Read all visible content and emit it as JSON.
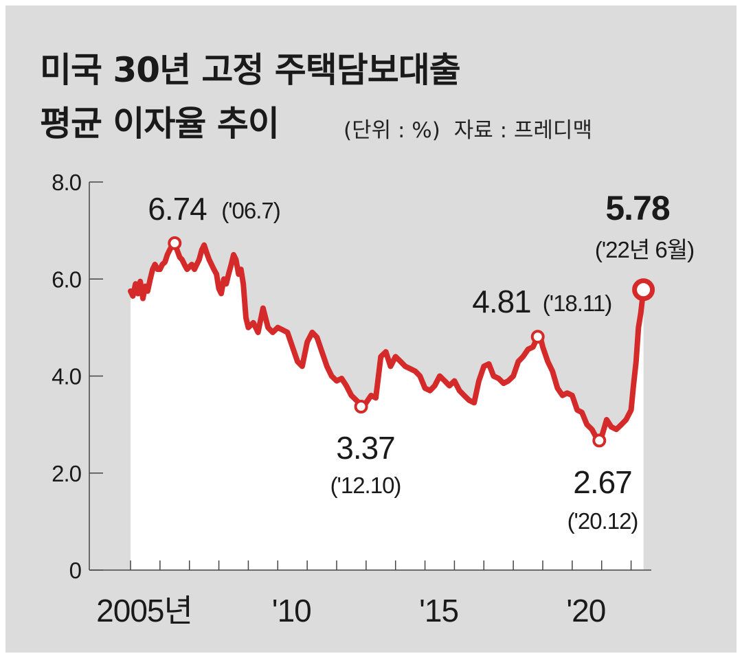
{
  "header": {
    "title_line1": "미국 30년 고정 주택담보대출",
    "title_line2": "평균 이자율 추이",
    "unit": "(단위 : %)",
    "source": "자료 : 프레디맥"
  },
  "colors": {
    "background": "#dcdcdc",
    "area_fill": "#ffffff",
    "line": "#d42a2a",
    "text": "#1a1a1a"
  },
  "chart_data": {
    "type": "area",
    "title": "미국 30년 고정 주택담보대출 평균 이자율 추이",
    "ylabel": "",
    "xlabel": "",
    "ylim": [
      0,
      8
    ],
    "xlim": [
      2005.0,
      2022.5
    ],
    "y_ticks": [
      "0",
      "2.0",
      "4.0",
      "6.0",
      "8.0"
    ],
    "x_tick_labels": [
      {
        "x": 2005,
        "label": "2005년"
      },
      {
        "x": 2010,
        "label": "'10"
      },
      {
        "x": 2015,
        "label": "'15"
      },
      {
        "x": 2020,
        "label": "'20"
      }
    ],
    "grid": false,
    "series": [
      {
        "x": [
          2005.0,
          2005.08,
          2005.17,
          2005.25,
          2005.33,
          2005.42,
          2005.5,
          2005.58,
          2005.67,
          2005.75,
          2005.83,
          2005.92,
          2006.0,
          2006.08,
          2006.17,
          2006.25,
          2006.33,
          2006.42,
          2006.5,
          2006.58,
          2006.67,
          2006.75,
          2006.83,
          2006.92,
          2007.0,
          2007.08,
          2007.17,
          2007.25,
          2007.33,
          2007.42,
          2007.5,
          2007.58,
          2007.67,
          2007.75,
          2007.83,
          2007.92,
          2008.0,
          2008.08,
          2008.17,
          2008.25,
          2008.33,
          2008.42,
          2008.5,
          2008.58,
          2008.67,
          2008.75,
          2008.83,
          2008.92,
          2009.0,
          2009.17,
          2009.33,
          2009.5,
          2009.67,
          2009.83,
          2010.0,
          2010.17,
          2010.33,
          2010.5,
          2010.67,
          2010.83,
          2011.0,
          2011.17,
          2011.33,
          2011.5,
          2011.67,
          2011.83,
          2012.0,
          2012.17,
          2012.33,
          2012.5,
          2012.67,
          2012.83,
          2012.92,
          2013.0,
          2013.17,
          2013.33,
          2013.5,
          2013.67,
          2013.83,
          2014.0,
          2014.17,
          2014.33,
          2014.5,
          2014.67,
          2014.83,
          2015.0,
          2015.17,
          2015.33,
          2015.5,
          2015.67,
          2015.83,
          2016.0,
          2016.17,
          2016.33,
          2016.5,
          2016.67,
          2016.83,
          2017.0,
          2017.17,
          2017.33,
          2017.5,
          2017.67,
          2017.83,
          2018.0,
          2018.17,
          2018.33,
          2018.5,
          2018.67,
          2018.83,
          2018.92,
          2019.0,
          2019.17,
          2019.33,
          2019.5,
          2019.67,
          2019.83,
          2020.0,
          2020.17,
          2020.33,
          2020.5,
          2020.67,
          2020.83,
          2020.92,
          2021.0,
          2021.17,
          2021.33,
          2021.5,
          2021.67,
          2021.83,
          2022.0,
          2022.08,
          2022.17,
          2022.25,
          2022.33,
          2022.42
        ],
        "y": [
          5.75,
          5.65,
          5.9,
          5.7,
          5.95,
          5.6,
          5.85,
          5.75,
          6.0,
          6.2,
          6.3,
          6.2,
          6.2,
          6.3,
          6.35,
          6.5,
          6.6,
          6.7,
          6.74,
          6.6,
          6.45,
          6.4,
          6.3,
          6.2,
          6.25,
          6.3,
          6.2,
          6.3,
          6.4,
          6.6,
          6.7,
          6.55,
          6.4,
          6.3,
          6.2,
          6.1,
          5.8,
          5.7,
          6.0,
          5.9,
          6.1,
          6.3,
          6.5,
          6.4,
          6.1,
          6.2,
          5.9,
          5.2,
          5.0,
          5.1,
          4.9,
          5.4,
          5.0,
          4.9,
          5.0,
          4.95,
          4.9,
          4.6,
          4.3,
          4.2,
          4.7,
          4.9,
          4.8,
          4.5,
          4.2,
          4.0,
          3.9,
          3.95,
          3.8,
          3.6,
          3.5,
          3.4,
          3.37,
          3.45,
          3.6,
          3.55,
          4.4,
          4.5,
          4.2,
          4.4,
          4.3,
          4.2,
          4.15,
          4.1,
          4.0,
          3.75,
          3.7,
          3.8,
          4.0,
          3.9,
          3.8,
          3.9,
          3.7,
          3.6,
          3.5,
          3.45,
          3.9,
          4.2,
          4.25,
          4.0,
          3.95,
          3.85,
          3.9,
          4.0,
          4.3,
          4.4,
          4.55,
          4.6,
          4.81,
          4.8,
          4.6,
          4.3,
          4.1,
          3.75,
          3.6,
          3.65,
          3.6,
          3.3,
          3.25,
          3.0,
          2.9,
          2.72,
          2.67,
          2.75,
          3.1,
          2.95,
          2.9,
          3.0,
          3.1,
          3.3,
          3.8,
          4.3,
          5.0,
          5.3,
          5.78
        ]
      }
    ],
    "annotations": [
      {
        "x": 2006.5,
        "y": 6.74,
        "value": "6.74",
        "date": "('06.7)"
      },
      {
        "x": 2012.83,
        "y": 3.37,
        "value": "3.37",
        "date": "('12.10)"
      },
      {
        "x": 2018.83,
        "y": 4.81,
        "value": "4.81",
        "date": "('18.11)"
      },
      {
        "x": 2020.92,
        "y": 2.67,
        "value": "2.67",
        "date": "('20.12)"
      },
      {
        "x": 2022.42,
        "y": 5.78,
        "value": "5.78",
        "date": "('22년 6월)"
      }
    ]
  }
}
